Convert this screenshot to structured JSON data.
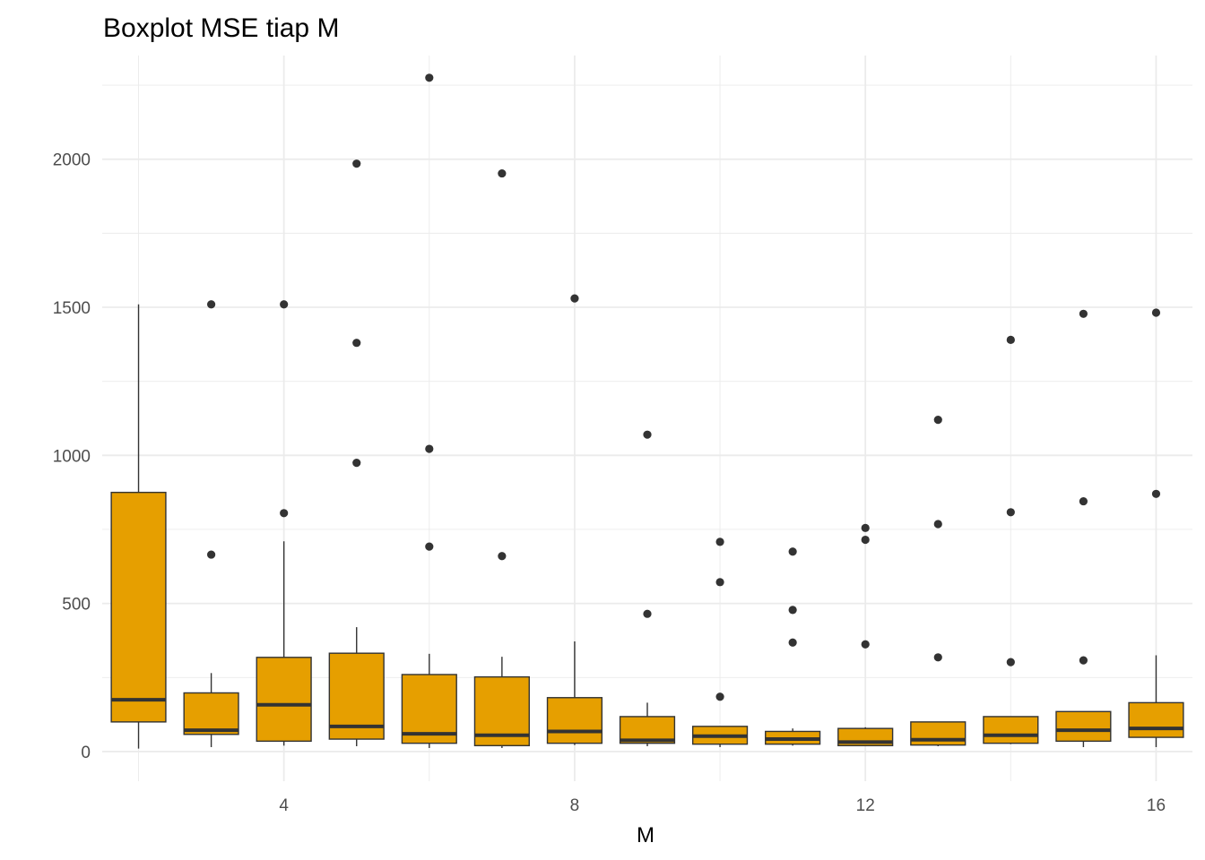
{
  "chart_data": {
    "type": "boxplot",
    "title": "Boxplot MSE tiap M",
    "xlabel": "M",
    "ylabel": "",
    "xlim": [
      1.5,
      16.5
    ],
    "ylim": [
      -100,
      2350
    ],
    "x_ticks": [
      4,
      8,
      12,
      16
    ],
    "x_tick_labels": [
      "4",
      "8",
      "12",
      "16"
    ],
    "y_ticks": [
      0,
      500,
      1000,
      1500,
      2000
    ],
    "y_tick_labels": [
      "0",
      "500",
      "1000",
      "1500",
      "2000"
    ],
    "grid": true,
    "legend": "none",
    "colors": {
      "box_fill": "#E69F00",
      "box_line": "#333333",
      "grid": "#EBEBEB",
      "outlier": "#333333"
    },
    "boxes": [
      {
        "x": 2,
        "lower": 10,
        "q1": 100,
        "median": 175,
        "q3": 875,
        "upper": 1510,
        "outliers": []
      },
      {
        "x": 3,
        "lower": 15,
        "q1": 58,
        "median": 72,
        "q3": 198,
        "upper": 265,
        "outliers": [
          665,
          1510
        ]
      },
      {
        "x": 4,
        "lower": 20,
        "q1": 35,
        "median": 158,
        "q3": 318,
        "upper": 710,
        "outliers": [
          805,
          1510
        ]
      },
      {
        "x": 5,
        "lower": 18,
        "q1": 42,
        "median": 85,
        "q3": 332,
        "upper": 420,
        "outliers": [
          975,
          1380,
          1985
        ]
      },
      {
        "x": 6,
        "lower": 12,
        "q1": 28,
        "median": 60,
        "q3": 260,
        "upper": 330,
        "outliers": [
          692,
          1022,
          2275
        ]
      },
      {
        "x": 7,
        "lower": 12,
        "q1": 20,
        "median": 55,
        "q3": 252,
        "upper": 320,
        "outliers": [
          660,
          1952
        ]
      },
      {
        "x": 8,
        "lower": 22,
        "q1": 28,
        "median": 68,
        "q3": 182,
        "upper": 372,
        "outliers": [
          1530
        ]
      },
      {
        "x": 9,
        "lower": 18,
        "q1": 28,
        "median": 38,
        "q3": 118,
        "upper": 165,
        "outliers": [
          465,
          1070
        ]
      },
      {
        "x": 10,
        "lower": 15,
        "q1": 25,
        "median": 52,
        "q3": 85,
        "upper": 85,
        "outliers": [
          185,
          572,
          708
        ]
      },
      {
        "x": 11,
        "lower": 20,
        "q1": 25,
        "median": 42,
        "q3": 68,
        "upper": 78,
        "outliers": [
          368,
          478,
          675
        ]
      },
      {
        "x": 12,
        "lower": 18,
        "q1": 20,
        "median": 32,
        "q3": 78,
        "upper": 82,
        "outliers": [
          362,
          715,
          755
        ]
      },
      {
        "x": 13,
        "lower": 18,
        "q1": 22,
        "median": 40,
        "q3": 100,
        "upper": 100,
        "outliers": [
          318,
          768,
          1120
        ]
      },
      {
        "x": 14,
        "lower": 25,
        "q1": 28,
        "median": 55,
        "q3": 118,
        "upper": 118,
        "outliers": [
          302,
          808,
          1390
        ]
      },
      {
        "x": 15,
        "lower": 15,
        "q1": 35,
        "median": 72,
        "q3": 135,
        "upper": 135,
        "outliers": [
          308,
          845,
          1478
        ]
      },
      {
        "x": 16,
        "lower": 15,
        "q1": 48,
        "median": 78,
        "q3": 165,
        "upper": 325,
        "outliers": [
          870,
          1482
        ]
      }
    ]
  }
}
